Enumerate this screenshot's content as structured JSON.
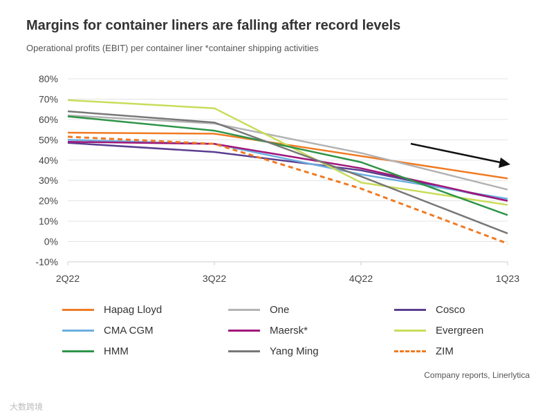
{
  "chart_data": {
    "type": "line",
    "title": "Margins for container liners are falling after record levels",
    "subtitle": "Operational profits (EBIT) per container liner *container shipping activities",
    "source": "Company reports, Linerlytica",
    "watermark": "大数跨境",
    "x": [
      "2Q22",
      "3Q22",
      "4Q22",
      "1Q23"
    ],
    "ylim": [
      -10,
      80
    ],
    "yticks": [
      -10,
      0,
      10,
      20,
      30,
      40,
      50,
      60,
      70,
      80
    ],
    "ytick_labels": [
      "-10%",
      "0%",
      "10%",
      "20%",
      "30%",
      "40%",
      "50%",
      "60%",
      "70%",
      "80%"
    ],
    "grid": true,
    "legend_position": "bottom",
    "annotation": "downward trend arrow",
    "series": [
      {
        "name": "Hapag Lloyd",
        "color": "#f07a22",
        "dash": false,
        "values": [
          53.5,
          53,
          42,
          31
        ]
      },
      {
        "name": "One",
        "color": "#b3b3b3",
        "dash": false,
        "values": [
          62,
          58,
          43.5,
          25.5
        ]
      },
      {
        "name": "Cosco",
        "color": "#5b3e8f",
        "dash": false,
        "values": [
          48.5,
          44,
          35,
          20
        ]
      },
      {
        "name": "CMA CGM",
        "color": "#6baee0",
        "dash": false,
        "values": [
          50,
          48,
          33,
          21
        ]
      },
      {
        "name": "Maersk*",
        "color": "#a0167a",
        "dash": false,
        "values": [
          49,
          48,
          36,
          20
        ]
      },
      {
        "name": "Evergreen",
        "color": "#c9dc5a",
        "dash": false,
        "values": [
          69.5,
          65.5,
          29,
          18
        ]
      },
      {
        "name": "HMM",
        "color": "#2e9447",
        "dash": false,
        "values": [
          61.5,
          54.5,
          39,
          13
        ]
      },
      {
        "name": "Yang Ming",
        "color": "#777777",
        "dash": false,
        "values": [
          64,
          58.5,
          32,
          4
        ]
      },
      {
        "name": "ZIM",
        "color": "#f07a22",
        "dash": true,
        "values": [
          51.5,
          48,
          26,
          -1
        ]
      }
    ]
  }
}
